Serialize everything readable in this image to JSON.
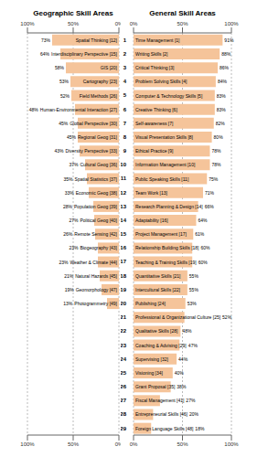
{
  "chart_data": [
    {
      "type": "bar",
      "orientation": "horizontal",
      "title": "Geographic Skill Areas",
      "categories": [
        "Spatial Thinking [12]",
        "Interdisciplinary Perspective [15]",
        "GIS [20]",
        "Cartography [23]",
        "Field Methods [26]",
        "Human-Environmental Interaction [27]",
        "Global Perspective [30]",
        "Regional Geog [31]",
        "Diversity Perspective [33]",
        "Cultural Geog [36]",
        "Spatial Statistics [37]",
        "Economic Geog [38]",
        "Population Geog [39]",
        "Political Geog [40]",
        "Remote Sensing [42]",
        "Biogeography [43]",
        "Weather & Climate [44]",
        "Natural Hazards [45]",
        "Geomorphology [47]",
        "Photogrammetry [49]"
      ],
      "values": [
        73,
        64,
        58,
        53,
        52,
        48,
        45,
        45,
        43,
        37,
        35,
        33,
        28,
        27,
        26,
        23,
        23,
        21,
        19,
        13
      ],
      "value_labels": [
        "73%",
        "64%",
        "58%",
        "53%",
        "52%",
        "48%",
        "45%",
        "45%",
        "43%",
        "37%",
        "35%",
        "33%",
        "28%",
        "27%",
        "26%",
        "23%",
        "23%",
        "21%",
        "19%",
        "13%"
      ],
      "color": "#f5c49a",
      "xlim": [
        0,
        100
      ],
      "xticks": [
        {
          "value": 0,
          "label": "0%"
        },
        {
          "value": 50,
          "label": "50%"
        },
        {
          "value": 100,
          "label": "100%"
        }
      ],
      "grid": true,
      "data_labels": true
    },
    {
      "type": "bar",
      "orientation": "horizontal",
      "title": "General Skill Areas",
      "categories": [
        "Time Management [1]",
        "Writing Skills [2]",
        "Critical Thinking [3]",
        "Problem Solving Skills [4]",
        "Computer & Technology Skills [5]",
        "Creative Thinking [6]",
        "Self-awareness [7]",
        "Visual Presentation Skills [8]",
        "Ethical Practice [9]",
        "Information Management [10]",
        "Public Speaking Skills [11]",
        "Team Work [13]",
        "Research Planning & Design [14]",
        "Adaptability [16]",
        "Project Management [17]",
        "Relationship Building Skills [18]",
        "Teaching & Training Skills [19]",
        "Quantitative Skills [21]",
        "Intercultural Skills [22]",
        "Publishing [24]",
        "Professional & Organizational Culture [25]",
        "Qualitative Skills [28]",
        "Coaching & Advising [29]",
        "Supervising [32]",
        "Visioning [34]",
        "Grant Proposal [35]",
        "Fiscal Management [41]",
        "Entrepreneurial Skills [46]",
        "Foreign Language Skills [48]"
      ],
      "values": [
        91,
        88,
        86,
        84,
        83,
        83,
        82,
        80,
        78,
        78,
        75,
        71,
        66,
        64,
        61,
        60,
        60,
        55,
        55,
        53,
        52,
        48,
        47,
        44,
        40,
        38,
        27,
        20,
        18
      ],
      "value_labels": [
        "91%",
        "88%",
        "86%",
        "84%",
        "83%",
        "83%",
        "82%",
        "80%",
        "78%",
        "78%",
        "75%",
        "71%",
        "66%",
        "64%",
        "61%",
        "60%",
        "60%",
        "55%",
        "55%",
        "53%",
        "52%",
        "48%",
        "47%",
        "44%",
        "40%",
        "38%",
        "27%",
        "20%",
        "18%"
      ],
      "row_numbers": [
        1,
        2,
        3,
        4,
        5,
        6,
        7,
        8,
        9,
        10,
        11,
        12,
        13,
        14,
        15,
        16,
        17,
        18,
        19,
        20,
        21,
        22,
        23,
        24,
        25,
        26,
        27,
        28,
        29
      ],
      "color": "#f5c49a",
      "xlim": [
        0,
        100
      ],
      "xticks": [
        {
          "value": 0,
          "label": "0%"
        },
        {
          "value": 50,
          "label": "50%"
        },
        {
          "value": 100,
          "label": "100%"
        }
      ],
      "grid": true,
      "data_labels": true
    }
  ]
}
